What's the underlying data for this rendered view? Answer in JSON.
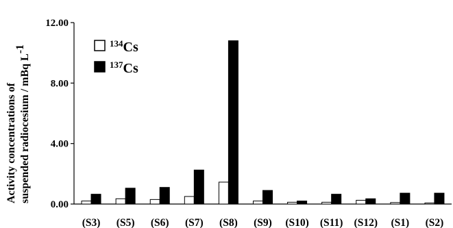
{
  "chart_data": {
    "type": "bar",
    "ylabel_line1": "Activity concentrations of",
    "ylabel_line2": "suspended radiocesium / mBq L",
    "ylabel_sup": "-1",
    "ylim": [
      0,
      12
    ],
    "yticks": [
      "0.00",
      "4.00",
      "8.00",
      "12.00"
    ],
    "ytick_values": [
      0,
      4,
      8,
      12
    ],
    "categories": [
      "(S3)",
      "(S5)",
      "(S6)",
      "(S7)",
      "(S8)",
      "(S9)",
      "(S10)",
      "(S11)",
      "(S12)",
      "(S1)",
      "(S2)"
    ],
    "series": [
      {
        "name_sup": "134",
        "name_base": "Cs",
        "fill": "#ffffff",
        "stroke": "#000000",
        "values": [
          0.2,
          0.35,
          0.3,
          0.5,
          1.45,
          0.2,
          0.12,
          0.12,
          0.25,
          0.1,
          0.07
        ]
      },
      {
        "name_sup": "137",
        "name_base": "Cs",
        "fill": "#000000",
        "stroke": "#000000",
        "values": [
          0.65,
          1.05,
          1.1,
          2.25,
          10.8,
          0.9,
          0.2,
          0.65,
          0.35,
          0.72,
          0.72
        ]
      }
    ],
    "legend_position": "top-left",
    "grid": false
  }
}
